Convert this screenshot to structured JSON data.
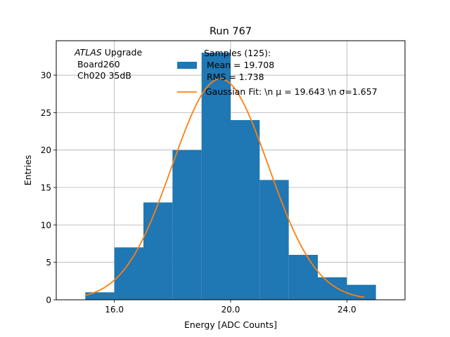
{
  "chart_data": {
    "type": "bar",
    "title": "Run 767",
    "xlabel": "Energy [ADC Counts]",
    "ylabel": "Entries",
    "xlim": [
      14.0,
      26.0
    ],
    "ylim": [
      0,
      34.6
    ],
    "xticks": [
      16.0,
      20.0,
      24.0
    ],
    "xtick_labels": [
      "16.0",
      "20.0",
      "24.0"
    ],
    "yticks": [
      0,
      5,
      10,
      15,
      20,
      25,
      30
    ],
    "ytick_labels": [
      "0",
      "5",
      "10",
      "15",
      "20",
      "25",
      "30"
    ],
    "grid": true,
    "bins": [
      15,
      16,
      17,
      18,
      19,
      20,
      21,
      22,
      23,
      24,
      25
    ],
    "counts": [
      1,
      7,
      13,
      20,
      33,
      24,
      16,
      6,
      3,
      2
    ],
    "bar_color": "#1f77b4",
    "fit": {
      "name": "Gaussian Fit",
      "mu": 19.643,
      "sigma": 1.657,
      "amplitude": 29.5,
      "x_range": [
        15.0,
        24.6
      ],
      "color": "#ff7f0e"
    },
    "annotation": {
      "experiment": "ATLAS",
      "lines": [
        "Upgrade",
        " Board260",
        " Ch020 35dB"
      ]
    },
    "legend": {
      "placement": "top-right",
      "samples_label": [
        "Samples (125):",
        " Mean = 19.708",
        " RMS = 1.738"
      ],
      "fit_label": "Gaussian Fit: \\n μ = 19.643 \\n σ=1.657"
    }
  }
}
